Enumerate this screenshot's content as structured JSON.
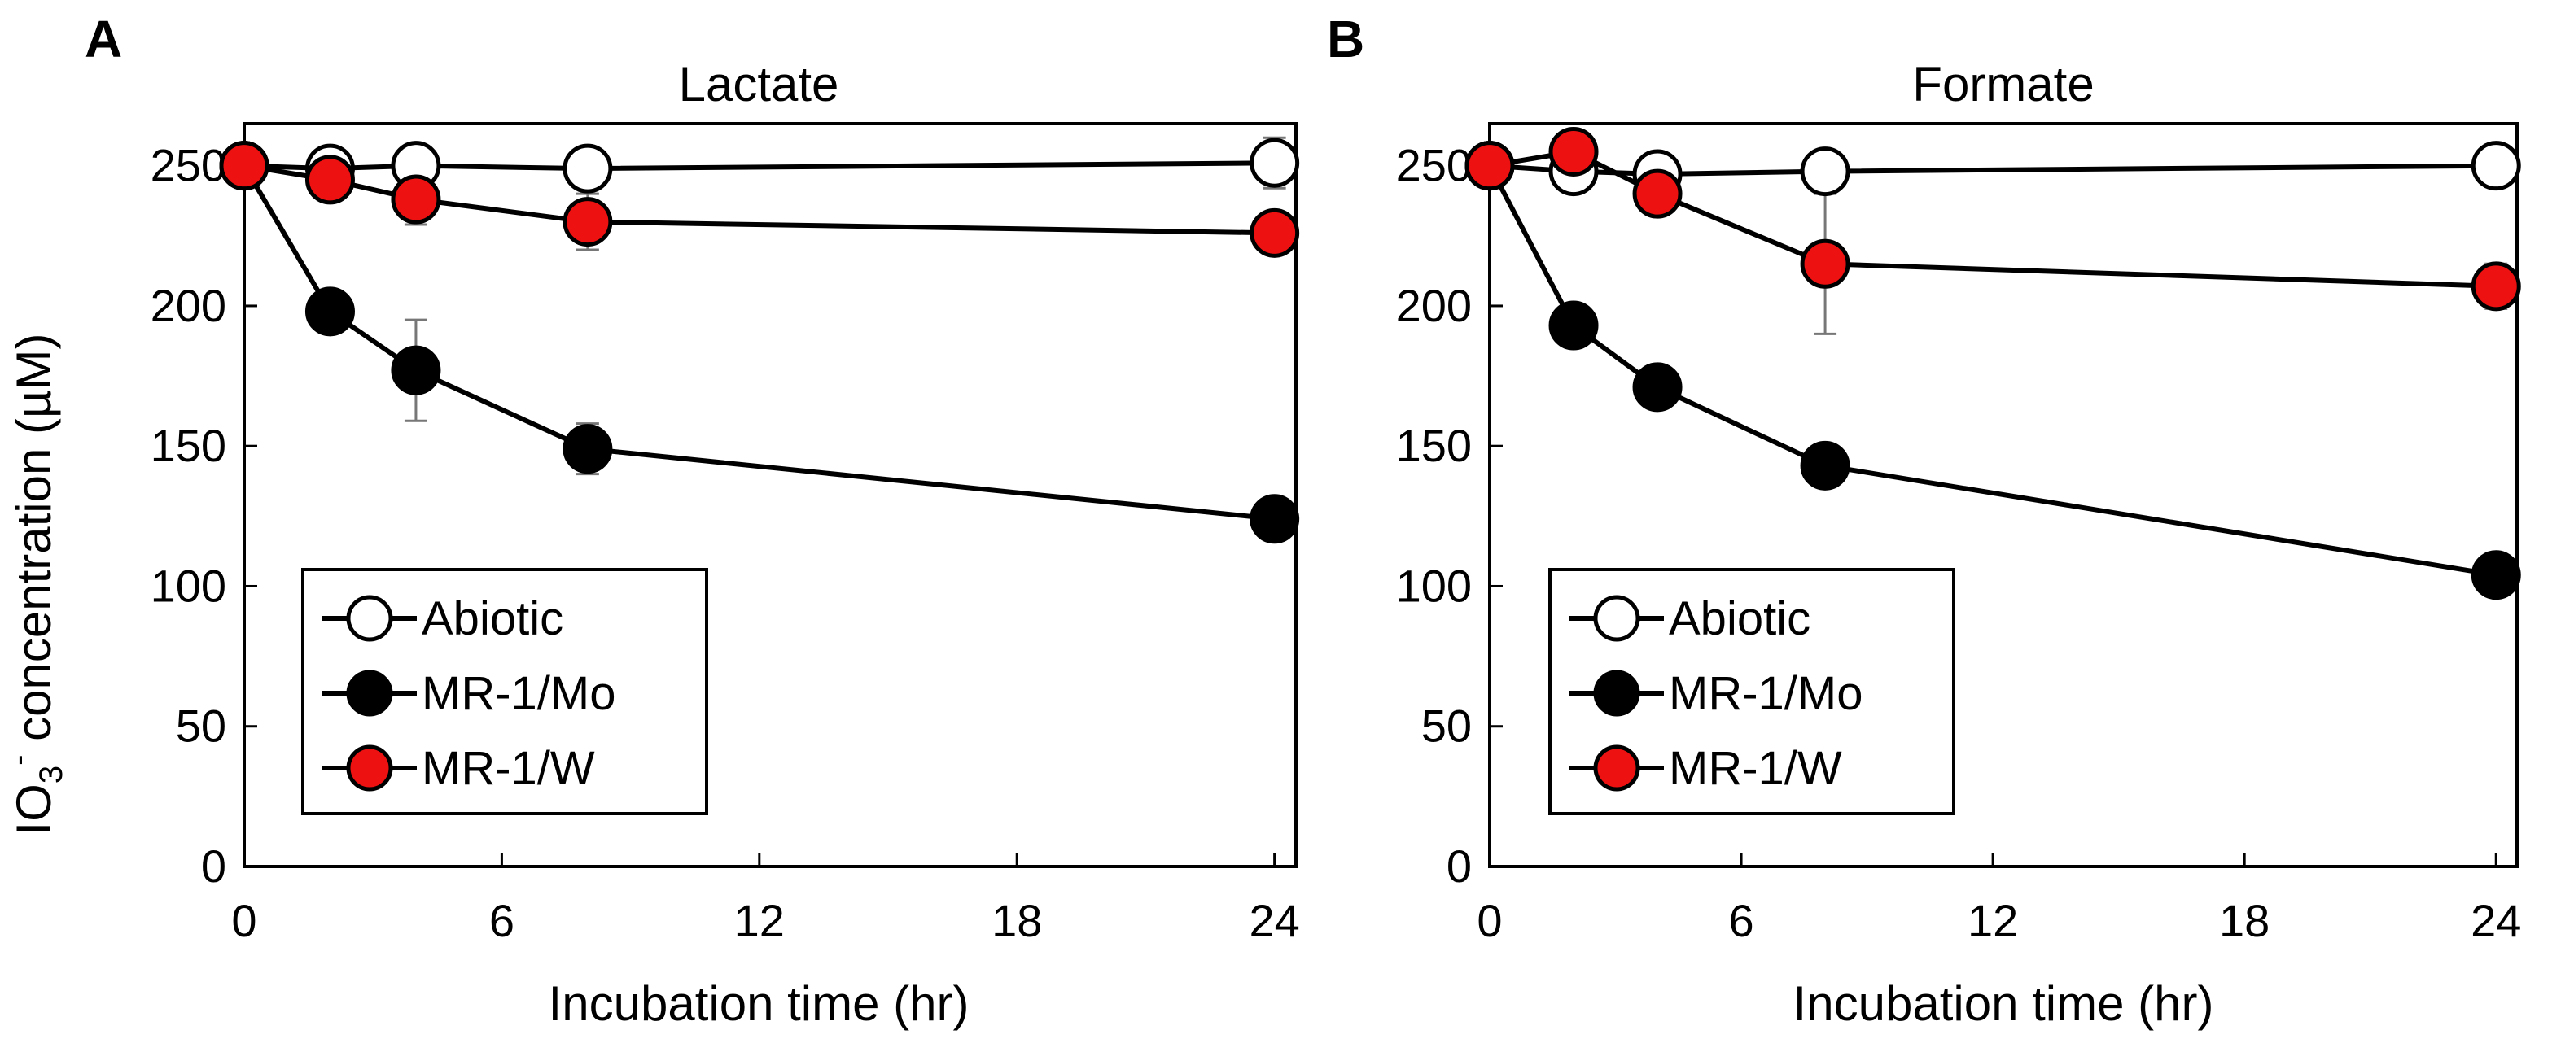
{
  "colors": {
    "abiotic_fill": "#ffffff",
    "mo_fill": "#000000",
    "w_fill": "#ee1111",
    "stroke": "#000000",
    "errorbar": "#777777"
  },
  "ylabel": {
    "pre": "IO",
    "sub": "3",
    "sup": "-",
    "post": " concentration (µM)"
  },
  "chart_data": [
    {
      "type": "line",
      "panel_label": "A",
      "title": "Lactate",
      "xlabel": "Incubation time (hr)",
      "xlim": [
        0,
        24.5
      ],
      "ylim": [
        0,
        265
      ],
      "xticks": [
        0,
        6,
        12,
        18,
        24
      ],
      "yticks": [
        0,
        50,
        100,
        150,
        200,
        250
      ],
      "x": [
        0,
        2,
        4,
        8,
        24
      ],
      "series": [
        {
          "name": "Abiotic",
          "key": "abiotic",
          "values": [
            250,
            249,
            250,
            249,
            251
          ],
          "errors": [
            0,
            2,
            3,
            2,
            9
          ]
        },
        {
          "name": "MR-1/Mo",
          "key": "mo",
          "values": [
            250,
            198,
            177,
            149,
            124
          ],
          "errors": [
            0,
            4,
            18,
            9,
            3
          ]
        },
        {
          "name": "MR-1/W",
          "key": "w",
          "values": [
            250,
            245,
            238,
            230,
            226
          ],
          "errors": [
            0,
            5,
            9,
            10,
            3
          ]
        }
      ]
    },
    {
      "type": "line",
      "panel_label": "B",
      "title": "Formate",
      "xlabel": "Incubation time (hr)",
      "xlim": [
        0,
        24.5
      ],
      "ylim": [
        0,
        265
      ],
      "xticks": [
        0,
        6,
        12,
        18,
        24
      ],
      "yticks": [
        0,
        50,
        100,
        150,
        200,
        250
      ],
      "x": [
        0,
        2,
        4,
        8,
        24
      ],
      "series": [
        {
          "name": "Abiotic",
          "key": "abiotic",
          "values": [
            250,
            248,
            247,
            248,
            250
          ],
          "errors": [
            0,
            2,
            2,
            3,
            3
          ]
        },
        {
          "name": "MR-1/Mo",
          "key": "mo",
          "values": [
            250,
            193,
            171,
            143,
            104
          ],
          "errors": [
            0,
            3,
            4,
            4,
            2
          ]
        },
        {
          "name": "MR-1/W",
          "key": "w",
          "values": [
            250,
            255,
            240,
            215,
            207
          ],
          "errors": [
            0,
            3,
            5,
            25,
            8
          ]
        }
      ]
    }
  ]
}
